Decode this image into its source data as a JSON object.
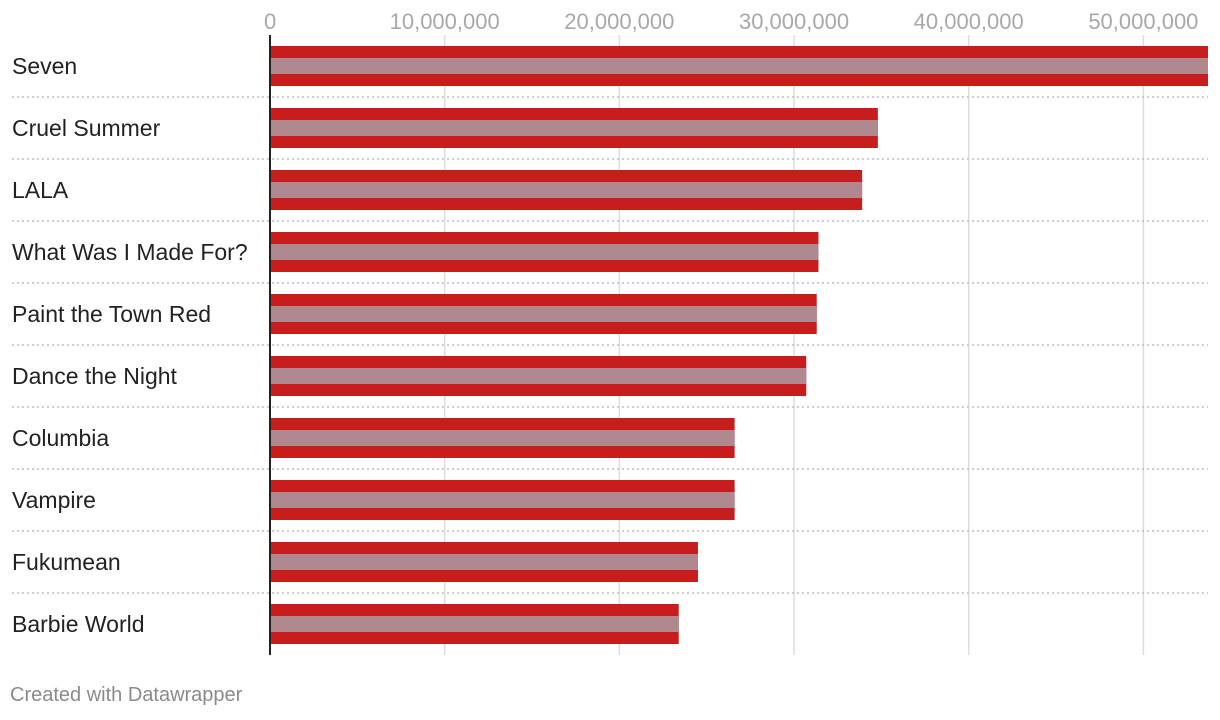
{
  "chart_data": {
    "type": "bar",
    "orientation": "horizontal",
    "categories": [
      "Seven",
      "Cruel Summer",
      "LALA",
      "What Was I Made For?",
      "Paint the Town Red",
      "Dance the Night",
      "Columbia",
      "Vampire",
      "Fukumean",
      "Barbie World"
    ],
    "values": [
      53700000,
      34800000,
      33900000,
      31400000,
      31300000,
      30700000,
      26600000,
      26600000,
      24500000,
      23400000
    ],
    "xlim": [
      0,
      53700000
    ],
    "xticks": [
      0,
      10000000,
      20000000,
      30000000,
      40000000,
      50000000
    ],
    "xtick_labels": [
      "0",
      "10,000,000",
      "20,000,000",
      "30,000,000",
      "40,000,000",
      "50,000,000"
    ],
    "grid": true,
    "colors": {
      "bar": "#c71e1d",
      "bar_inner": "#b08890",
      "grid": "#dddddd",
      "separator": "#bfbfbf",
      "axis": "#222222"
    }
  },
  "footer": {
    "credit": "Created with Datawrapper"
  }
}
